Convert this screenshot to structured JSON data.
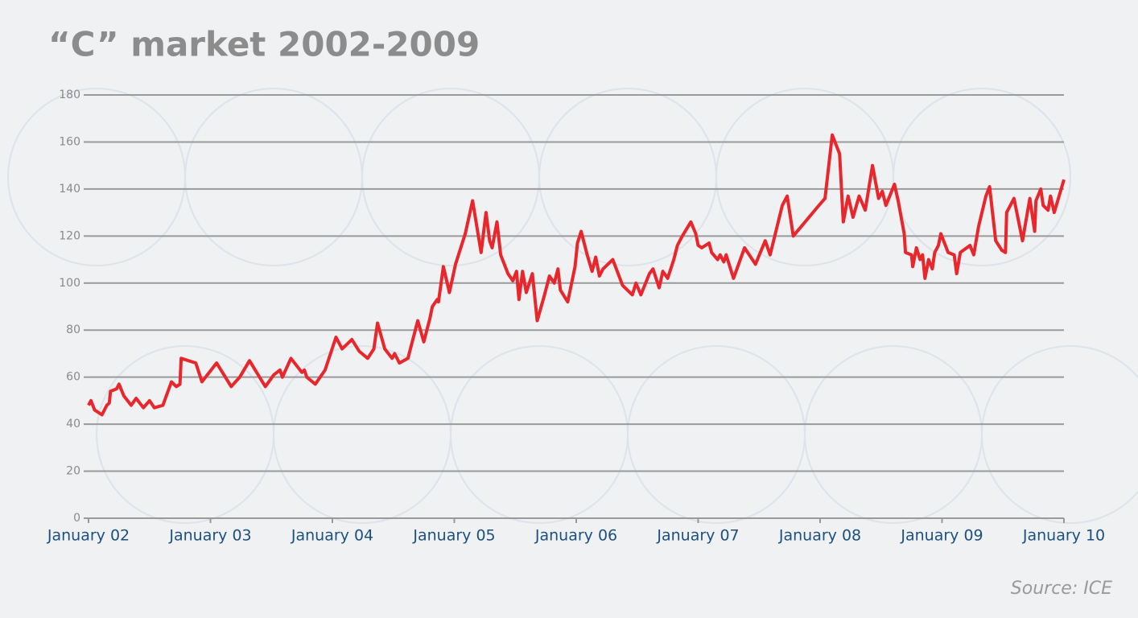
{
  "chart_data": {
    "type": "line",
    "title": "“C” market 2002-2009",
    "source": "Source: ICE",
    "x": [
      2002.0,
      2002.02,
      2002.05,
      2002.11,
      2002.15,
      2002.17,
      2002.18,
      2002.23,
      2002.25,
      2002.29,
      2002.35,
      2002.39,
      2002.45,
      2002.5,
      2002.54,
      2002.61,
      2002.68,
      2002.72,
      2002.75,
      2002.76,
      2002.88,
      2002.93,
      2003.05,
      2003.17,
      2003.24,
      2003.32,
      2003.45,
      2003.52,
      2003.57,
      2003.59,
      2003.66,
      2003.75,
      2003.77,
      2003.79,
      2003.86,
      2003.94,
      2004.03,
      2004.08,
      2004.16,
      2004.22,
      2004.29,
      2004.34,
      2004.37,
      2004.43,
      2004.49,
      2004.51,
      2004.55,
      2004.62,
      2004.7,
      2004.75,
      2004.8,
      2004.82,
      2004.86,
      2004.87,
      2004.91,
      2004.96,
      2005.01,
      2005.09,
      2005.15,
      2005.22,
      2005.26,
      2005.29,
      2005.31,
      2005.35,
      2005.38,
      2005.44,
      2005.48,
      2005.51,
      2005.53,
      2005.56,
      2005.59,
      2005.64,
      2005.68,
      2005.74,
      2005.78,
      2005.82,
      2005.85,
      2005.87,
      2005.93,
      2005.99,
      2006.01,
      2006.04,
      2006.09,
      2006.13,
      2006.16,
      2006.19,
      2006.22,
      2006.3,
      2006.38,
      2006.46,
      2006.49,
      2006.53,
      2006.6,
      2006.63,
      2006.68,
      2006.71,
      2006.75,
      2006.8,
      2006.83,
      2006.87,
      2006.94,
      2006.98,
      2007.0,
      2007.03,
      2007.09,
      2007.11,
      2007.16,
      2007.18,
      2007.21,
      2007.23,
      2007.29,
      2007.38,
      2007.47,
      2007.55,
      2007.59,
      2007.69,
      2007.73,
      2007.78,
      2007.99,
      2008.04,
      2008.1,
      2008.16,
      2008.19,
      2008.23,
      2008.27,
      2008.32,
      2008.37,
      2008.43,
      2008.48,
      2008.51,
      2008.54,
      2008.61,
      2008.64,
      2008.69,
      2008.7,
      2008.75,
      2008.76,
      2008.79,
      2008.82,
      2008.84,
      2008.86,
      2008.89,
      2008.92,
      2008.94,
      2008.97,
      2008.99,
      2009.05,
      2009.1,
      2009.12,
      2009.15,
      2009.23,
      2009.26,
      2009.3,
      2009.36,
      2009.39,
      2009.44,
      2009.49,
      2009.52,
      2009.53,
      2009.59,
      2009.66,
      2009.72,
      2009.76,
      2009.77,
      2009.81,
      2009.83,
      2009.87,
      2009.89,
      2009.92,
      2010.0
    ],
    "series": [
      {
        "color": "#e8262b",
        "values": [
          48,
          50,
          46,
          44,
          48,
          49,
          54,
          55,
          57,
          52,
          48,
          51,
          47,
          50,
          47,
          48,
          58,
          56,
          57,
          68,
          66,
          58,
          66,
          56,
          60,
          67,
          56,
          61,
          63,
          60,
          68,
          62,
          63,
          60,
          57,
          63,
          77,
          72,
          76,
          71,
          68,
          72,
          83,
          72,
          68,
          70,
          66,
          68,
          84,
          75,
          85,
          90,
          93,
          92,
          107,
          96,
          108,
          121,
          135,
          113,
          130,
          118,
          115,
          126,
          112,
          104,
          101,
          105,
          93,
          105,
          96,
          104,
          84,
          95,
          103,
          100,
          106,
          97,
          92,
          107,
          117,
          122,
          112,
          105,
          111,
          103,
          106,
          110,
          99,
          95,
          100,
          95,
          104,
          106,
          98,
          105,
          102,
          110,
          116,
          120,
          126,
          121,
          116,
          115,
          117,
          113,
          110,
          112,
          109,
          112,
          102,
          115,
          108,
          118,
          112,
          133,
          137,
          120,
          133,
          136,
          163,
          155,
          126,
          137,
          128,
          137,
          131,
          150,
          136,
          139,
          133,
          142,
          135,
          121,
          113,
          112,
          107,
          115,
          110,
          112,
          102,
          110,
          106,
          113,
          116,
          121,
          113,
          112,
          104,
          113,
          116,
          112,
          124,
          137,
          141,
          118,
          114,
          113,
          130,
          136,
          118,
          136,
          122,
          135,
          140,
          133,
          131,
          137,
          130,
          144
        ]
      }
    ],
    "xlim": [
      2002,
      2010
    ],
    "xticks": [
      {
        "value": 2002,
        "label": "January 02"
      },
      {
        "value": 2003,
        "label": "January 03"
      },
      {
        "value": 2004,
        "label": "January 04"
      },
      {
        "value": 2005,
        "label": "January 05"
      },
      {
        "value": 2006,
        "label": "January 06"
      },
      {
        "value": 2007,
        "label": "January 07"
      },
      {
        "value": 2008,
        "label": "January 08"
      },
      {
        "value": 2009,
        "label": "January 09"
      },
      {
        "value": 2010,
        "label": "January 10"
      }
    ],
    "ylim": [
      0,
      180
    ],
    "yticks": [
      0,
      20,
      40,
      60,
      80,
      100,
      120,
      140,
      160,
      180
    ],
    "grid": true
  }
}
